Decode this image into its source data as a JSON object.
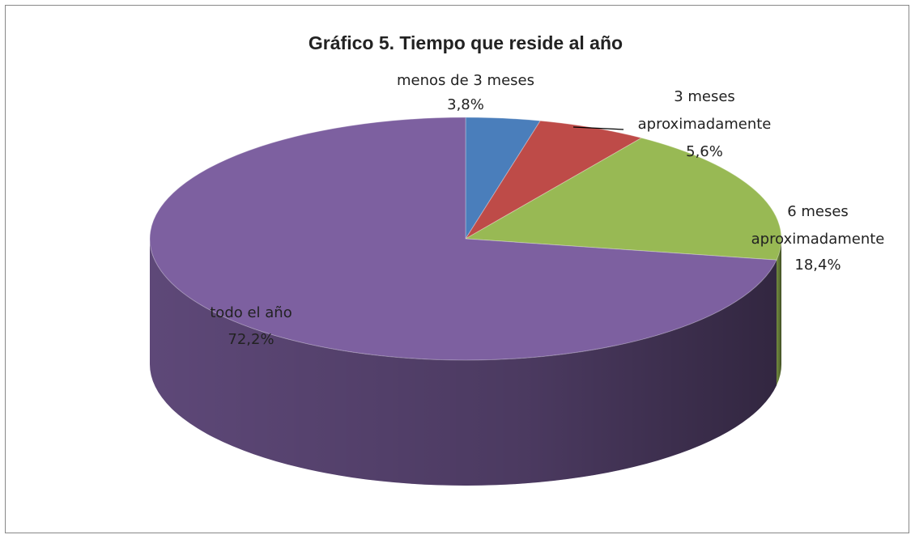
{
  "chart_data": {
    "type": "pie",
    "title": "Gráfico 5. Tiempo que reside al año",
    "categories": [
      "menos de 3 meses",
      "3 meses aproximadamente",
      "6 meses aproximadamente",
      "todo el año"
    ],
    "values": [
      3.8,
      5.6,
      18.4,
      72.2
    ],
    "value_labels": [
      "3,8%",
      "5,6%",
      "18,4%",
      "72,2%"
    ],
    "colors": [
      "#4a7ebb",
      "#be4b48",
      "#98b954",
      "#7d60a0"
    ]
  }
}
